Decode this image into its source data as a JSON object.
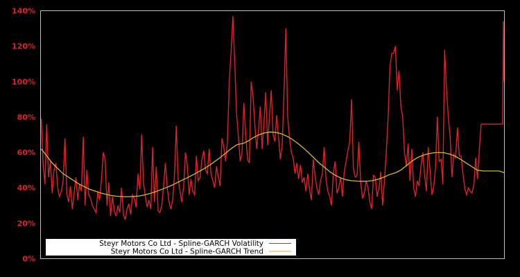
{
  "chart_data": {
    "type": "line",
    "title": "",
    "xlabel": "",
    "ylabel": "",
    "ylim": [
      0,
      140
    ],
    "y_ticks": [
      "0%",
      "20%",
      "40%",
      "60%",
      "80%",
      "100%",
      "120%",
      "140%"
    ],
    "y_tick_values": [
      0,
      20,
      40,
      60,
      80,
      100,
      120,
      140
    ],
    "grid": false,
    "legend_position": "lower left",
    "background": "#000000",
    "axis_color": "#c0c0c0",
    "tick_color": "#dd2222",
    "series": [
      {
        "name": "Steyr Motors Co Ltd - Spline-GARCH Volatility",
        "color": "#dd2228",
        "values": [
          79,
          54,
          42,
          76,
          46,
          55,
          37,
          50,
          54,
          40,
          35,
          38,
          44,
          68,
          36,
          32,
          41,
          28,
          37,
          46,
          33,
          42,
          38,
          69,
          30,
          50,
          36,
          34,
          30,
          28,
          26,
          38,
          33,
          45,
          60,
          56,
          30,
          43,
          24,
          35,
          27,
          24,
          30,
          26,
          40,
          25,
          22,
          28,
          31,
          25,
          36,
          34,
          29,
          48,
          39,
          70,
          43,
          35,
          29,
          33,
          28,
          63,
          32,
          52,
          27,
          26,
          30,
          41,
          54,
          40,
          32,
          28,
          33,
          48,
          75,
          45,
          38,
          32,
          41,
          60,
          53,
          36,
          45,
          38,
          36,
          58,
          44,
          46,
          56,
          61,
          50,
          48,
          62,
          48,
          44,
          40,
          52,
          46,
          41,
          68,
          63,
          55,
          66,
          100,
          117,
          137,
          110,
          82,
          69,
          55,
          60,
          88,
          70,
          56,
          54,
          100,
          92,
          76,
          62,
          72,
          86,
          62,
          76,
          94,
          64,
          80,
          95,
          70,
          66,
          81,
          68,
          56,
          64,
          95,
          130,
          80,
          68,
          60,
          57,
          48,
          54,
          45,
          53,
          43,
          46,
          38,
          48,
          39,
          33,
          56,
          47,
          40,
          36,
          44,
          48,
          63,
          45,
          38,
          35,
          30,
          48,
          55,
          37,
          40,
          46,
          35,
          49,
          55,
          61,
          66,
          90,
          51,
          46,
          47,
          66,
          43,
          34,
          37,
          44,
          40,
          32,
          28,
          47,
          46,
          35,
          40,
          49,
          30,
          44,
          60,
          79,
          108,
          116,
          116,
          120,
          95,
          106,
          86,
          80,
          60,
          52,
          65,
          44,
          62,
          40,
          35,
          44,
          41,
          52,
          60,
          47,
          38,
          63,
          50,
          36,
          40,
          52,
          80,
          55,
          56,
          42,
          118,
          96,
          80,
          69,
          46,
          59,
          57,
          74,
          58,
          58,
          48,
          40,
          36,
          40,
          38,
          37,
          42,
          57,
          45,
          62,
          76,
          134,
          100
        ],
        "x_end_linear": true
      },
      {
        "name": "Steyr Motors Co Ltd - Spline-GARCH Trend",
        "color": "#d8b832",
        "values": [
          62,
          58,
          54,
          51,
          48,
          46,
          44,
          42,
          40.5,
          39,
          38,
          37,
          36.2,
          35.6,
          35.2,
          35,
          35,
          35.1,
          35.4,
          36,
          36.8,
          37.8,
          39,
          40.2,
          41.5,
          43,
          44.5,
          46,
          47.6,
          49.3,
          51,
          53,
          55.2,
          57.5,
          60,
          62.5,
          64.5,
          65,
          66.5,
          68.5,
          70,
          71,
          71.5,
          71.3,
          70.6,
          69.3,
          67.5,
          65.3,
          62.8,
          60,
          57,
          54,
          51.5,
          49,
          47,
          45.5,
          44.5,
          44,
          43.8,
          43.7,
          43.8,
          44.2,
          45,
          46.2,
          47.6,
          48.5,
          50,
          52.5,
          55,
          57,
          58.3,
          59.2,
          59.8,
          60,
          59.8,
          59,
          57.8,
          56,
          54,
          52,
          50,
          49.5,
          49.5,
          49.5,
          49.5,
          48.5
        ]
      }
    ]
  },
  "legend": {
    "items": [
      {
        "label": "Steyr Motors Co Ltd - Spline-GARCH Volatility",
        "color": "#dd2228"
      },
      {
        "label": "Steyr Motors Co Ltd - Spline-GARCH Trend",
        "color": "#d8b832"
      }
    ]
  }
}
